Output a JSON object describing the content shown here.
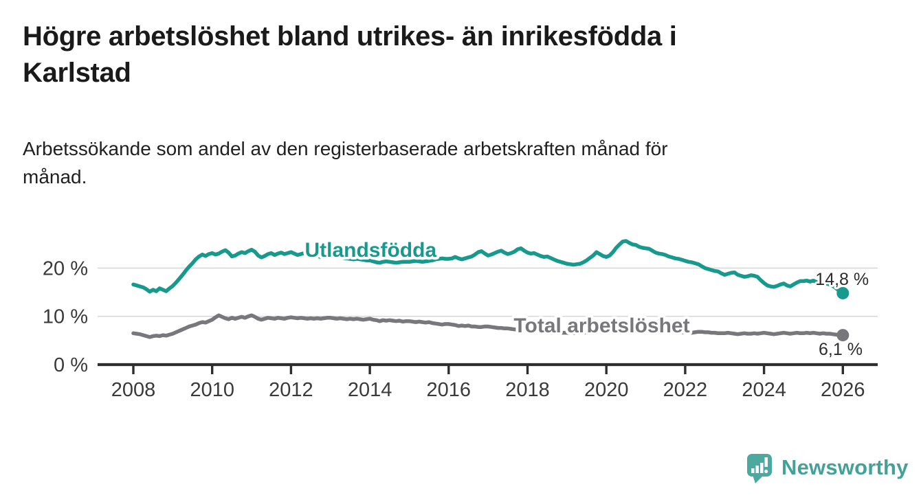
{
  "title": {
    "lines": [
      "Högre arbetslöshet bland utrikes- än inrikesfödda i",
      "Karlstad"
    ]
  },
  "subtitle": {
    "lines": [
      "Arbetssökande som andel av den registerbaserade arbetskraften månad för",
      "månad."
    ]
  },
  "colors": {
    "background": "#ffffff",
    "axis": "#2e2e2e",
    "grid": "#d8d8d8",
    "tick_text": "#3a3a3a",
    "title_text": "#1a1a1a",
    "accent_teal": "#179a8d",
    "accent_gray": "#77777c",
    "logo_teal": "#4ba9a0"
  },
  "chart_data": {
    "type": "line",
    "x_unit": "year-month",
    "x_start_year": 2008,
    "x_end_year": 2026,
    "points_per_year": 12,
    "x_ticks": [
      2008,
      2010,
      2012,
      2014,
      2016,
      2018,
      2020,
      2022,
      2024,
      2026
    ],
    "y_ticks": [
      0,
      10,
      20
    ],
    "y_tick_labels": [
      "0 %",
      "10 %",
      "20 %"
    ],
    "ylim": [
      0,
      28
    ],
    "grid": "horizontal",
    "legend_position": "inline-labels",
    "series": [
      {
        "name": "Utlandsfödda",
        "color": "#179a8d",
        "end_value_label": "14,8 %",
        "values": [
          16.6,
          16.4,
          16.2,
          16.0,
          15.6,
          15.1,
          15.5,
          15.2,
          15.8,
          15.5,
          15.2,
          15.8,
          16.3,
          17.0,
          17.8,
          18.6,
          19.5,
          20.3,
          21.0,
          21.8,
          22.4,
          22.8,
          22.5,
          22.9,
          23.1,
          22.8,
          23.0,
          23.4,
          23.7,
          23.2,
          22.4,
          22.6,
          23.0,
          23.3,
          23.1,
          23.5,
          23.8,
          23.4,
          22.6,
          22.2,
          22.5,
          22.9,
          23.1,
          22.7,
          23.0,
          23.2,
          22.9,
          23.1,
          23.3,
          23.0,
          22.7,
          22.9,
          23.1,
          22.8,
          22.6,
          22.8,
          22.5,
          22.3,
          22.5,
          22.4,
          22.6,
          22.5,
          22.3,
          22.2,
          22.1,
          22.0,
          21.9,
          21.8,
          21.9,
          21.8,
          21.7,
          21.6,
          21.6,
          21.4,
          21.2,
          21.1,
          21.3,
          21.4,
          21.3,
          21.2,
          21.1,
          21.2,
          21.3,
          21.3,
          21.3,
          21.4,
          21.5,
          21.4,
          21.3,
          21.4,
          21.5,
          21.6,
          21.8,
          21.9,
          22.0,
          21.9,
          21.9,
          22.0,
          22.3,
          22.0,
          21.8,
          22.0,
          22.2,
          22.4,
          22.8,
          23.3,
          23.5,
          23.0,
          22.6,
          22.8,
          23.1,
          23.4,
          23.6,
          23.2,
          22.9,
          23.1,
          23.4,
          23.9,
          24.1,
          23.6,
          23.2,
          23.0,
          23.1,
          22.8,
          22.5,
          22.3,
          22.4,
          22.1,
          21.8,
          21.5,
          21.3,
          21.1,
          20.9,
          20.8,
          20.7,
          20.8,
          20.9,
          21.2,
          21.6,
          22.1,
          22.6,
          23.3,
          22.9,
          22.5,
          22.3,
          22.6,
          23.3,
          24.2,
          24.9,
          25.5,
          25.6,
          25.2,
          24.9,
          24.8,
          24.4,
          24.2,
          24.1,
          24.0,
          23.6,
          23.2,
          23.0,
          22.9,
          22.7,
          22.4,
          22.2,
          22.0,
          21.9,
          21.7,
          21.5,
          21.3,
          21.2,
          21.0,
          20.8,
          20.4,
          20.0,
          19.8,
          19.6,
          19.4,
          19.3,
          18.9,
          18.6,
          18.8,
          19.0,
          19.1,
          18.6,
          18.4,
          18.2,
          18.3,
          18.5,
          18.4,
          18.2,
          17.5,
          16.9,
          16.4,
          16.2,
          16.1,
          16.3,
          16.6,
          16.8,
          16.4,
          16.2,
          16.6,
          17.0,
          17.3,
          17.3,
          17.4,
          17.2,
          17.4,
          17.1,
          16.9,
          17.0,
          16.8,
          16.6,
          16.3,
          15.8,
          15.2,
          14.8
        ]
      },
      {
        "name": "Total arbetslöshet",
        "color": "#77777c",
        "end_value_label": "6,1 %",
        "values": [
          6.5,
          6.4,
          6.3,
          6.1,
          5.9,
          5.7,
          5.9,
          6.0,
          5.9,
          6.1,
          6.0,
          6.2,
          6.4,
          6.7,
          7.0,
          7.3,
          7.6,
          7.9,
          8.1,
          8.3,
          8.6,
          8.8,
          8.7,
          9.0,
          9.3,
          9.8,
          10.2,
          9.9,
          9.6,
          9.4,
          9.7,
          9.5,
          9.7,
          9.9,
          9.7,
          10.0,
          10.2,
          9.9,
          9.5,
          9.3,
          9.5,
          9.7,
          9.6,
          9.5,
          9.7,
          9.6,
          9.5,
          9.7,
          9.8,
          9.7,
          9.6,
          9.7,
          9.6,
          9.5,
          9.6,
          9.5,
          9.6,
          9.5,
          9.6,
          9.7,
          9.7,
          9.6,
          9.5,
          9.6,
          9.5,
          9.4,
          9.5,
          9.4,
          9.5,
          9.4,
          9.3,
          9.4,
          9.5,
          9.3,
          9.2,
          9.0,
          9.2,
          9.1,
          9.2,
          9.1,
          9.0,
          9.1,
          8.9,
          9.0,
          9.0,
          8.9,
          8.8,
          8.9,
          8.8,
          8.7,
          8.8,
          8.6,
          8.5,
          8.4,
          8.3,
          8.4,
          8.4,
          8.3,
          8.2,
          8.0,
          8.1,
          8.0,
          8.1,
          7.9,
          7.9,
          7.8,
          7.8,
          7.9,
          7.9,
          7.8,
          7.7,
          7.6,
          7.6,
          7.5,
          7.5,
          7.4,
          7.3,
          7.3,
          7.2,
          7.2,
          7.2,
          7.1,
          7.0,
          7.0,
          6.9,
          6.8,
          6.8,
          6.7,
          6.7,
          6.6,
          6.6,
          6.6,
          6.6,
          6.5,
          6.5,
          6.5,
          6.6,
          6.6,
          6.7,
          6.8,
          6.9,
          7.0,
          7.1,
          7.2,
          7.3,
          7.5,
          7.9,
          8.3,
          8.5,
          8.5,
          8.4,
          8.3,
          8.2,
          8.0,
          7.9,
          7.8,
          7.7,
          7.5,
          7.4,
          7.2,
          7.1,
          7.0,
          7.0,
          6.9,
          6.9,
          6.8,
          6.8,
          6.7,
          6.7,
          6.6,
          6.6,
          6.7,
          6.8,
          6.8,
          6.7,
          6.7,
          6.6,
          6.6,
          6.5,
          6.5,
          6.5,
          6.6,
          6.5,
          6.4,
          6.3,
          6.4,
          6.5,
          6.4,
          6.4,
          6.5,
          6.4,
          6.5,
          6.6,
          6.5,
          6.4,
          6.3,
          6.4,
          6.5,
          6.6,
          6.5,
          6.4,
          6.5,
          6.6,
          6.5,
          6.5,
          6.6,
          6.5,
          6.6,
          6.5,
          6.4,
          6.5,
          6.4,
          6.4,
          6.3,
          6.2,
          6.2,
          6.1
        ]
      }
    ],
    "annotations": [
      {
        "text": "Utlandsfödda",
        "year": 2012.35,
        "value": 22.35,
        "anchor": "start",
        "color": "#179a8d",
        "size": 30,
        "bold": true,
        "halo": 8
      },
      {
        "text": "Total arbetslöshet",
        "year": 2017.65,
        "value": 6.7,
        "anchor": "start",
        "color": "#77777c",
        "size": 30,
        "bold": true,
        "halo": 8
      },
      {
        "text": "14,8 %",
        "year": 2026.66,
        "value": 16.5,
        "anchor": "end",
        "color": "#2d2d2d",
        "size": 25,
        "bold": false,
        "halo": 6
      },
      {
        "text": "6,1 %",
        "year": 2026.5,
        "value": 2.0,
        "anchor": "end",
        "color": "#2d2d2d",
        "size": 25,
        "bold": false,
        "halo": 6
      }
    ]
  },
  "branding": {
    "logo_text": "Newsworthy",
    "logo_icon": "bar-chart-speech-bubble"
  }
}
